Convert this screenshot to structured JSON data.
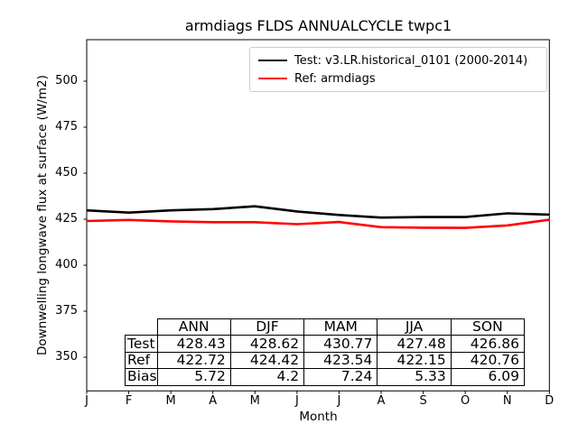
{
  "chart_data": {
    "type": "line",
    "title": "armdiags FLDS ANNUALCYCLE twpc1",
    "xlabel": "Month",
    "ylabel": "Downwelling longwave flux at surface (W/m2)",
    "x": [
      "J",
      "F",
      "M",
      "A",
      "M",
      "J",
      "J",
      "A",
      "S",
      "O",
      "N",
      "D"
    ],
    "yticks": [
      350,
      375,
      400,
      425,
      450,
      475,
      500
    ],
    "ylim": [
      331.7,
      522.6
    ],
    "grid": false,
    "legend_position": "upper right",
    "series": [
      {
        "name": "Test: v3.LR.historical_0101 (2000-2014)",
        "color": "#000000",
        "values": [
          429.8,
          428.6,
          429.8,
          430.5,
          432.0,
          429.2,
          427.3,
          425.9,
          426.2,
          426.2,
          428.2,
          427.5
        ]
      },
      {
        "name": "Ref: armdiags",
        "color": "#ff0000",
        "values": [
          424.0,
          424.6,
          423.8,
          423.4,
          423.4,
          422.3,
          423.5,
          420.7,
          420.4,
          420.3,
          421.6,
          424.7
        ]
      }
    ],
    "stats_table": {
      "col_headers": [
        "ANN",
        "DJF",
        "MAM",
        "JJA",
        "SON"
      ],
      "rows": [
        {
          "label": "Test",
          "values": [
            "428.43",
            "428.62",
            "430.77",
            "427.48",
            "426.86"
          ]
        },
        {
          "label": "Ref",
          "values": [
            "422.72",
            "424.42",
            "423.54",
            "422.15",
            "420.76"
          ]
        },
        {
          "label": "Bias",
          "values": [
            "5.72",
            "4.2",
            "7.24",
            "5.33",
            "6.09"
          ]
        }
      ]
    }
  }
}
